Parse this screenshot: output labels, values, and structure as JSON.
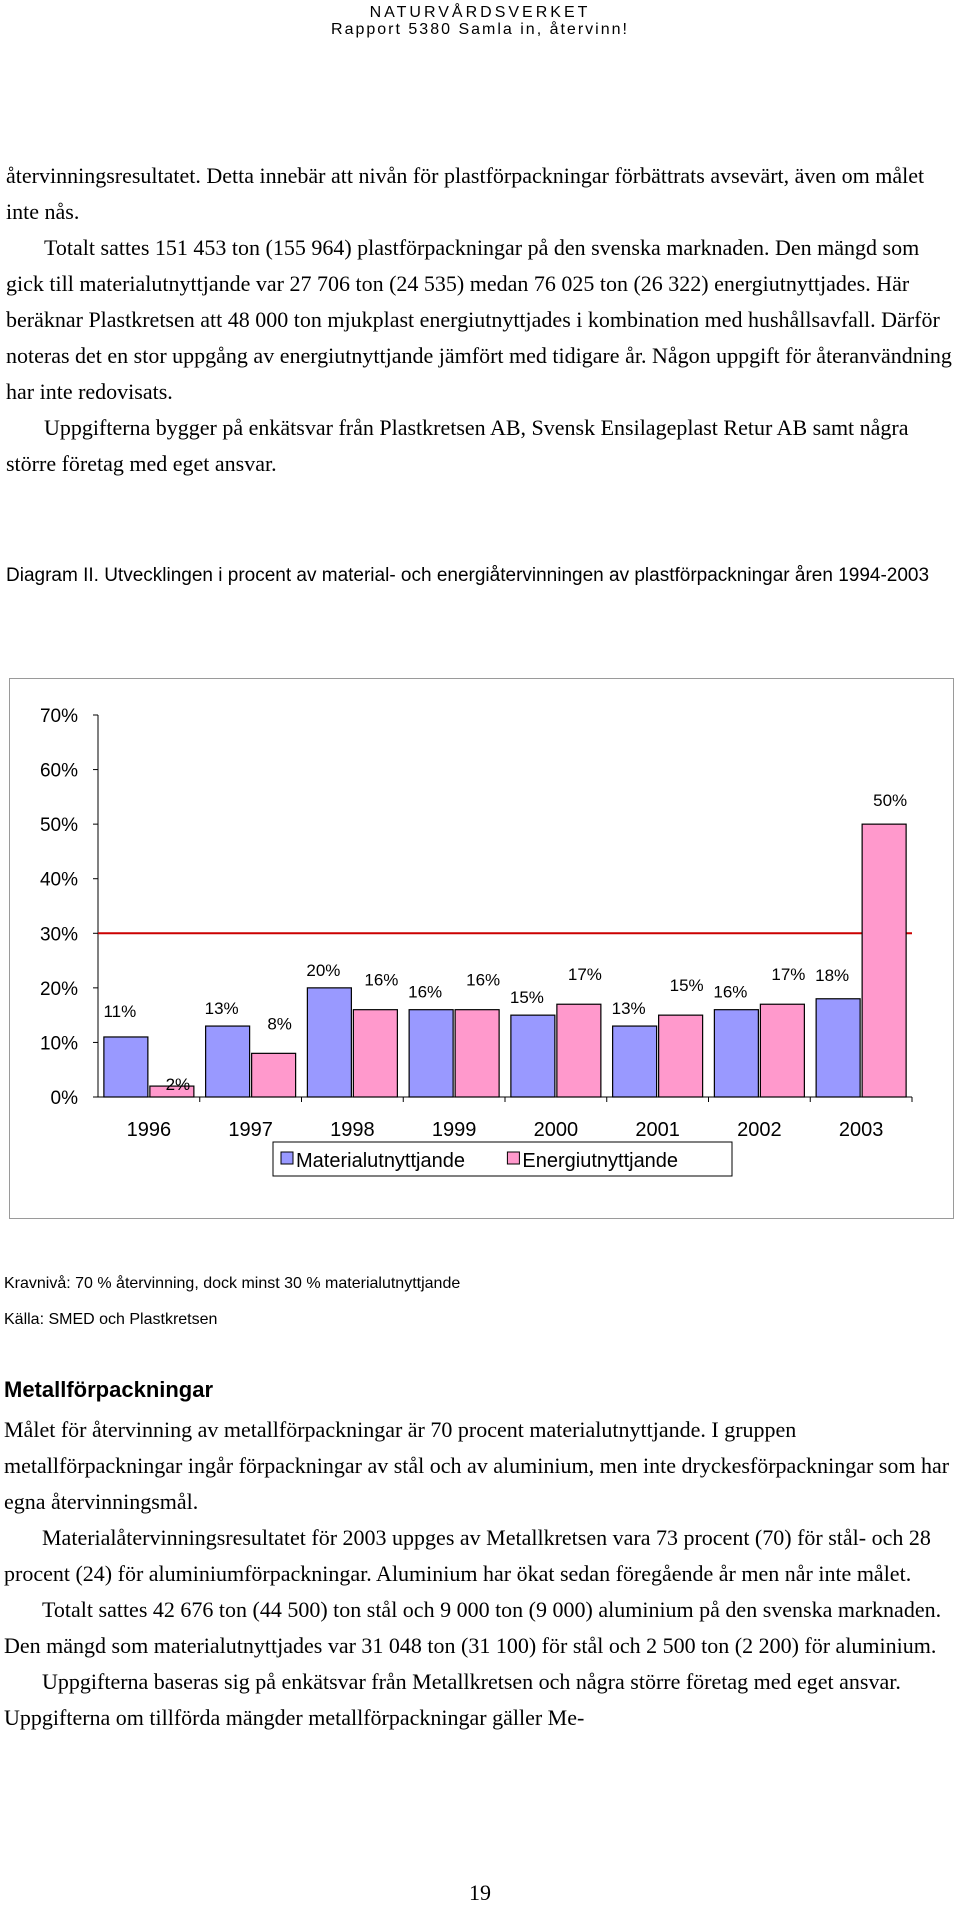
{
  "header": {
    "org": "NATURVÅRDSVERKET",
    "report": "Rapport 5380 Samla in, återvinn!"
  },
  "intro_paragraphs": [
    {
      "text": "återvinningsresultatet. Detta innebär att nivån för plastförpackningar förbättrats avsevärt, även om målet inte nås.",
      "indent": false
    },
    {
      "text": "Totalt sattes 151 453 ton (155 964) plastförpackningar på den svenska marknaden. Den mängd som gick till materialutnyttjande var 27 706 ton (24 535) medan 76 025 ton (26 322) energiutnyttjades. Här beräknar Plastkretsen att 48 000 ton mjukplast energiutnyttjades i kombination med hushållsavfall. Därför noteras det en stor uppgång av energiutnyttjande jämfört med tidigare år. Någon uppgift för återanvändning har inte redovisats.",
      "indent": true
    },
    {
      "text": "Uppgifterna bygger på enkätsvar från Plastkretsen AB, Svensk Ensilageplast Retur AB samt några större företag med eget ansvar.",
      "indent": true
    }
  ],
  "figure_caption": "Diagram II. Utvecklingen i procent av material- och energiåtervinningen av plastförpackningar åren 1994-2003",
  "chart_data": {
    "type": "bar",
    "title": "",
    "categories": [
      "1996",
      "1997",
      "1998",
      "1999",
      "2000",
      "2001",
      "2002",
      "2003"
    ],
    "series": [
      {
        "name": "Materialutnyttjande",
        "values": [
          11,
          13,
          20,
          16,
          15,
          13,
          16,
          18
        ],
        "color": "#9999ff"
      },
      {
        "name": "Energiutnyttjande",
        "values": [
          2,
          8,
          16,
          16,
          17,
          15,
          17,
          50
        ],
        "color": "#ff99cc"
      }
    ],
    "data_labels": {
      "Materialutnyttjande": [
        "11%",
        "13%",
        "20%",
        "16%",
        "15%",
        "13%",
        "16%",
        "18%"
      ],
      "Energiutnyttjande": [
        "2%",
        "8%",
        "16%",
        "16%",
        "17%",
        "15%",
        "17%",
        "50%"
      ]
    },
    "y_ticks": [
      "0%",
      "10%",
      "20%",
      "30%",
      "40%",
      "50%",
      "60%",
      "70%"
    ],
    "ylim": [
      0,
      70
    ],
    "reference_line": {
      "value": 30,
      "color": "#cc0000"
    },
    "legend_position": "bottom",
    "grid": false
  },
  "notes": {
    "requirement": "Kravnivå: 70 % återvinning, dock minst 30 % materialutnyttjande",
    "source": "Källa: SMED och Plastkretsen"
  },
  "section_heading": "Metallförpackningar",
  "metal_paragraphs": [
    {
      "text": "Målet för återvinning av metallförpackningar är 70 procent materialutnyttjande. I gruppen metallförpackningar ingår förpackningar av stål och av aluminium, men inte dryckesförpackningar som har egna återvinningsmål.",
      "indent": false
    },
    {
      "text": "Materialåtervinningsresultatet för 2003 uppges av Metallkretsen vara 73 procent (70) för stål- och 28 procent (24) för aluminiumförpackningar. Aluminium har ökat sedan föregående år men når inte målet.",
      "indent": true
    },
    {
      "text": "Totalt sattes 42 676 ton (44 500) ton stål och 9 000 ton (9 000) aluminium på den svenska marknaden. Den mängd som materialutnyttjades var 31 048 ton (31 100) för stål och 2 500 ton (2 200) för aluminium.",
      "indent": true
    },
    {
      "text": "Uppgifterna baseras sig på enkätsvar från Metallkretsen och några större företag med eget ansvar. Uppgifterna om tillförda mängder metallförpackningar gäller Me-",
      "indent": true
    }
  ],
  "page_number": "19"
}
